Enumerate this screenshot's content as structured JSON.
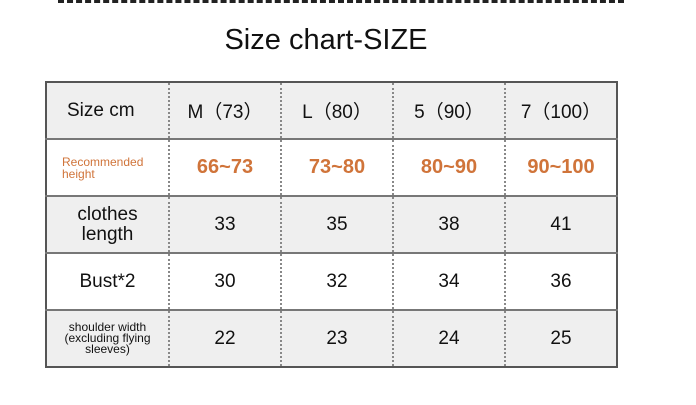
{
  "title": "Size chart-SIZE",
  "colors": {
    "accent": "#d0743a",
    "row_alt": "#efefef"
  },
  "table": {
    "header": [
      "Size cm",
      "M（73）",
      "L（80）",
      "5（90）",
      "7（100）"
    ],
    "rows": [
      {
        "label": "Recommended height",
        "values": [
          "66~73",
          "73~80",
          "80~90",
          "90~100"
        ]
      },
      {
        "label": "clothes length",
        "values": [
          "33",
          "35",
          "38",
          "41"
        ]
      },
      {
        "label": "Bust*2",
        "values": [
          "30",
          "32",
          "34",
          "36"
        ]
      },
      {
        "label": "shoulder width (excluding flying sleeves)",
        "values": [
          "22",
          "23",
          "24",
          "25"
        ]
      }
    ]
  }
}
